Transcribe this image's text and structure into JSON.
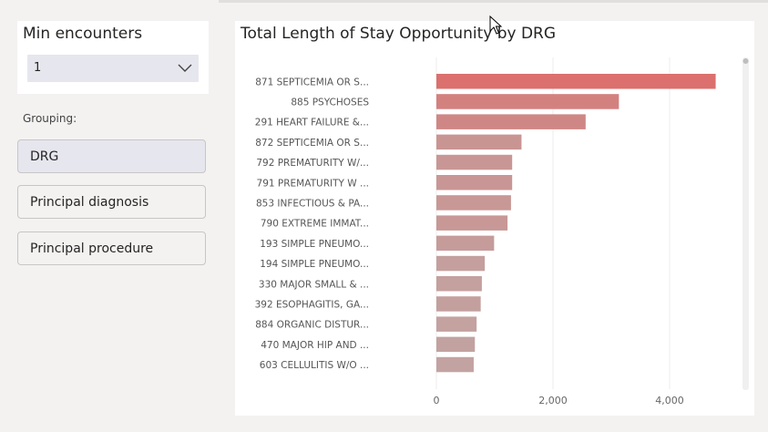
{
  "min_encounters": {
    "title": "Min encounters",
    "selected_value": "1",
    "chevron_icon": "chevron-down-icon"
  },
  "grouping": {
    "label": "Grouping:",
    "options": [
      {
        "label": "DRG",
        "selected": true
      },
      {
        "label": "Principal diagnosis",
        "selected": false
      },
      {
        "label": "Principal procedure",
        "selected": false
      }
    ]
  },
  "chart_data": {
    "type": "bar",
    "orientation": "horizontal",
    "title": "Total Length of Stay Opportunity by DRG",
    "categories": [
      "871 SEPTICEMIA OR S...",
      "885 PSYCHOSES",
      "291 HEART FAILURE &...",
      "872 SEPTICEMIA OR S...",
      "792 PREMATURITY W/...",
      "791 PREMATURITY W ...",
      "853 INFECTIOUS & PA...",
      "790 EXTREME IMMAT...",
      "193 SIMPLE PNEUMO...",
      "194 SIMPLE PNEUMO...",
      "330 MAJOR SMALL & ...",
      "392 ESOPHAGITIS, GA...",
      "884 ORGANIC DISTUR...",
      "470 MAJOR HIP AND ...",
      "603 CELLULITIS W/O ..."
    ],
    "values": [
      4790,
      3130,
      2560,
      1460,
      1300,
      1300,
      1280,
      1220,
      990,
      830,
      780,
      760,
      690,
      660,
      640
    ],
    "xlim": [
      0,
      5000
    ],
    "xticks": [
      0,
      2000,
      4000
    ],
    "xtick_labels": [
      "0",
      "2,000",
      "4,000"
    ],
    "grid": true,
    "colors": {
      "high": "#db706e",
      "low": "#c2a3a1"
    }
  }
}
